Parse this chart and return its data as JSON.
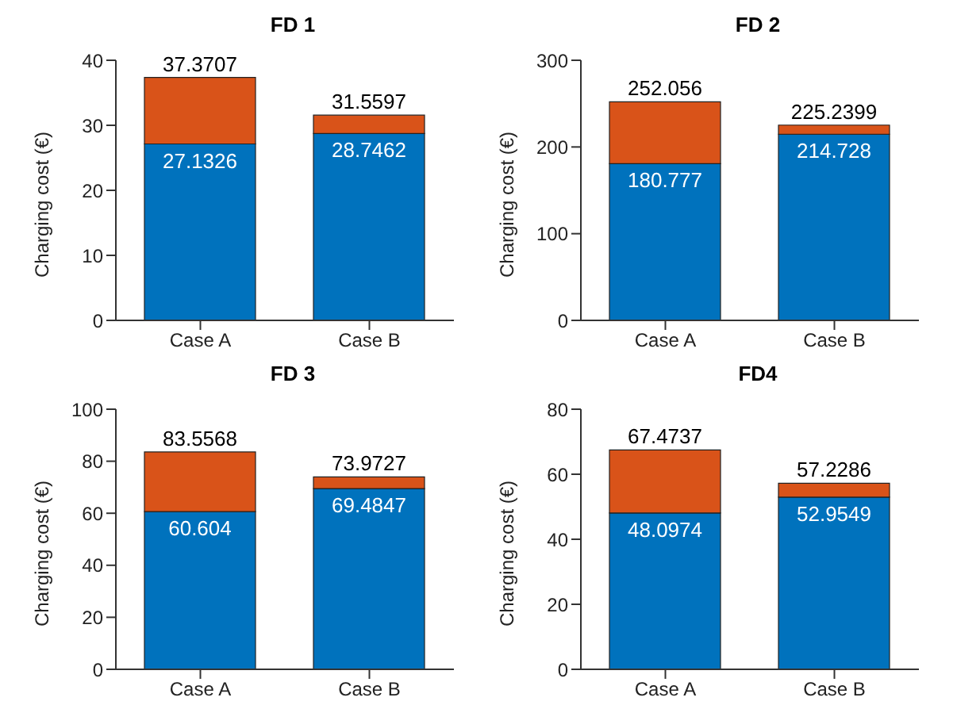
{
  "chart_data": [
    {
      "type": "bar",
      "title": "FD 1",
      "ylabel": "Charging cost (€)",
      "categories": [
        "Case A",
        "Case B"
      ],
      "stacked": true,
      "ylim": [
        0,
        40
      ],
      "yticks": [
        0,
        10,
        20,
        30,
        40
      ],
      "series": [
        {
          "color": "#0072bd",
          "values": [
            27.1326,
            28.7462
          ],
          "value_labels": [
            "27.1326",
            "28.7462"
          ]
        },
        {
          "color": "#d95319",
          "values": [
            10.2381,
            2.8135
          ]
        }
      ],
      "totals": [
        "37.3707",
        "31.5597"
      ]
    },
    {
      "type": "bar",
      "title": "FD 2",
      "ylabel": "Charging cost (€)",
      "categories": [
        "Case A",
        "Case B"
      ],
      "stacked": true,
      "ylim": [
        0,
        300
      ],
      "yticks": [
        0,
        100,
        200,
        300
      ],
      "series": [
        {
          "color": "#0072bd",
          "values": [
            180.777,
            214.728
          ],
          "value_labels": [
            "180.777",
            "214.728"
          ]
        },
        {
          "color": "#d95319",
          "values": [
            71.279,
            10.5119
          ]
        }
      ],
      "totals": [
        "252.056",
        "225.2399"
      ]
    },
    {
      "type": "bar",
      "title": "FD 3",
      "ylabel": "Charging cost (€)",
      "categories": [
        "Case A",
        "Case B"
      ],
      "stacked": true,
      "ylim": [
        0,
        100
      ],
      "yticks": [
        0,
        20,
        40,
        60,
        80,
        100
      ],
      "series": [
        {
          "color": "#0072bd",
          "values": [
            60.604,
            69.4847
          ],
          "value_labels": [
            "60.604",
            "69.4847"
          ]
        },
        {
          "color": "#d95319",
          "values": [
            22.9528,
            4.488
          ]
        }
      ],
      "totals": [
        "83.5568",
        "73.9727"
      ]
    },
    {
      "type": "bar",
      "title": "FD4",
      "ylabel": "Charging cost (€)",
      "categories": [
        "Case A",
        "Case B"
      ],
      "stacked": true,
      "ylim": [
        0,
        80
      ],
      "yticks": [
        0,
        20,
        40,
        60,
        80
      ],
      "series": [
        {
          "color": "#0072bd",
          "values": [
            48.0974,
            52.9549
          ],
          "value_labels": [
            "48.0974",
            "52.9549"
          ]
        },
        {
          "color": "#d95319",
          "values": [
            19.3763,
            4.2737
          ]
        }
      ],
      "totals": [
        "67.4737",
        "57.2286"
      ]
    }
  ]
}
